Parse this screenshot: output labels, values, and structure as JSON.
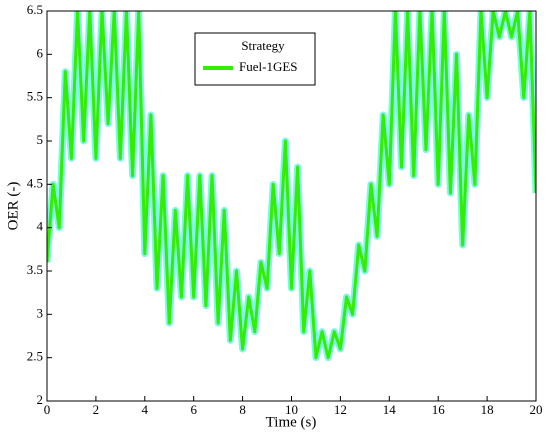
{
  "chart_data": {
    "type": "line",
    "legend_title": "Strategy",
    "xlabel": "Time (s)",
    "ylabel": "OER (-)",
    "x": [
      0,
      0.25,
      0.5,
      0.75,
      1,
      1.25,
      1.5,
      1.75,
      2,
      2.25,
      2.5,
      2.75,
      3,
      3.25,
      3.5,
      3.75,
      4,
      4.25,
      4.5,
      4.75,
      5,
      5.25,
      5.5,
      5.75,
      6,
      6.25,
      6.5,
      6.75,
      7,
      7.25,
      7.5,
      7.75,
      8,
      8.25,
      8.5,
      8.75,
      9,
      9.25,
      9.5,
      9.75,
      10,
      10.25,
      10.5,
      10.75,
      11,
      11.25,
      11.5,
      11.75,
      12,
      12.25,
      12.5,
      12.75,
      13,
      13.25,
      13.5,
      13.75,
      14,
      14.25,
      14.5,
      14.75,
      15,
      15.25,
      15.5,
      15.75,
      16,
      16.25,
      16.5,
      16.75,
      17,
      17.25,
      17.5,
      17.75,
      18,
      18.25,
      18.5,
      18.75,
      19,
      19.25,
      19.5,
      19.75,
      20
    ],
    "series": [
      {
        "name": "Fuel-1GES",
        "color": "#33ee00",
        "halo_color": "#7ff5ee",
        "values": [
          3.6,
          4.5,
          4.0,
          5.8,
          4.8,
          6.5,
          5.0,
          6.5,
          4.8,
          6.5,
          5.2,
          6.5,
          4.8,
          6.5,
          4.6,
          6.5,
          3.7,
          5.3,
          3.3,
          4.6,
          2.9,
          4.2,
          3.2,
          4.6,
          3.2,
          4.6,
          3.1,
          4.6,
          2.9,
          4.2,
          2.7,
          3.5,
          2.6,
          3.2,
          2.8,
          3.6,
          3.3,
          4.5,
          3.7,
          5.0,
          3.3,
          4.7,
          2.8,
          3.5,
          2.5,
          2.8,
          2.5,
          2.8,
          2.6,
          3.2,
          3.0,
          3.8,
          3.5,
          4.5,
          3.9,
          5.3,
          4.5,
          6.5,
          4.7,
          6.5,
          4.6,
          6.5,
          4.9,
          6.5,
          4.5,
          6.5,
          4.4,
          6.0,
          3.8,
          5.3,
          4.5,
          6.5,
          5.5,
          6.5,
          6.2,
          6.5,
          6.2,
          6.5,
          5.5,
          6.5,
          4.4
        ]
      }
    ],
    "xlim": [
      0,
      20
    ],
    "xticks": [
      0,
      2,
      4,
      6,
      8,
      10,
      12,
      14,
      16,
      18,
      20
    ],
    "ylim": [
      2,
      6.5
    ],
    "yticks": [
      2,
      2.5,
      3,
      3.5,
      4,
      4.5,
      5,
      5.5,
      6,
      6.5
    ]
  }
}
